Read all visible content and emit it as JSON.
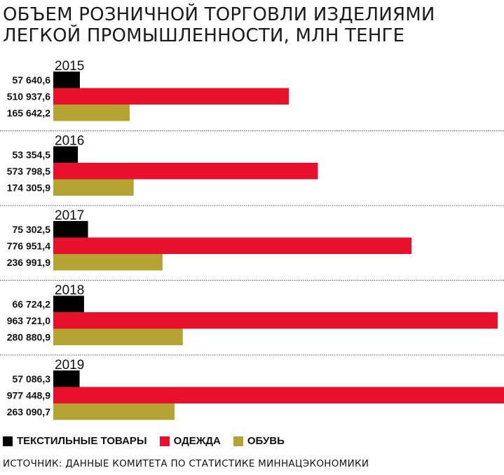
{
  "title_lines": [
    "ОБЪЕМ РОЗНИЧНОЙ ТОРГОВЛИ ИЗДЕЛИЯМИ",
    "ЛЕГКОЙ ПРОМЫШЛЕННОСТИ, МЛН ТЕНГЕ"
  ],
  "legend": {
    "textile": "ТЕКСТИЛЬНЫЕ ТОВАРЫ",
    "clothing": "ОДЕЖДА",
    "footwear": "ОБУВЬ"
  },
  "source": "ИСТОЧНИК: ДАННЫЕ КОМИТЕТА ПО СТАТИСТИКЕ МИННАЦЭКОНОМИКИ",
  "colors": {
    "textile": "#000000",
    "clothing": "#e8112d",
    "footwear": "#b5a434",
    "divider": "#555555"
  },
  "chart_data": {
    "type": "bar",
    "orientation": "horizontal",
    "title": "ОБЪЕМ РОЗНИЧНОЙ ТОРГОВЛИ ИЗДЕЛИЯМИ ЛЕГКОЙ ПРОМЫШЛЕННОСТИ, МЛН ТЕНГЕ",
    "categories": [
      "2015",
      "2016",
      "2017",
      "2018",
      "2019"
    ],
    "series": [
      {
        "name": "ТЕКСТИЛЬНЫЕ ТОВАРЫ",
        "key": "textile",
        "values": [
          57640.6,
          53354.5,
          75302.5,
          66724.2,
          57086.3
        ],
        "labels": [
          "57 640,6",
          "53 354,5",
          "75 302,5",
          "66 724,2",
          "57 086,3"
        ]
      },
      {
        "name": "ОДЕЖДА",
        "key": "clothing",
        "values": [
          510937.6,
          573798.5,
          776951.4,
          963721.0,
          977448.9
        ],
        "labels": [
          "510 937,6",
          "573 798,5",
          "776 951,4",
          "963 721,0",
          "977 448,9"
        ]
      },
      {
        "name": "ОБУВЬ",
        "key": "footwear",
        "values": [
          165642.2,
          174305.9,
          236991.9,
          280880.9,
          263090.7
        ],
        "labels": [
          "165 642,2",
          "174 305,9",
          "236 991,9",
          "280 880,9",
          "263 090,7"
        ]
      }
    ],
    "xlim": [
      0,
      977448.9
    ],
    "grid": false,
    "legend_position": "bottom-left"
  }
}
